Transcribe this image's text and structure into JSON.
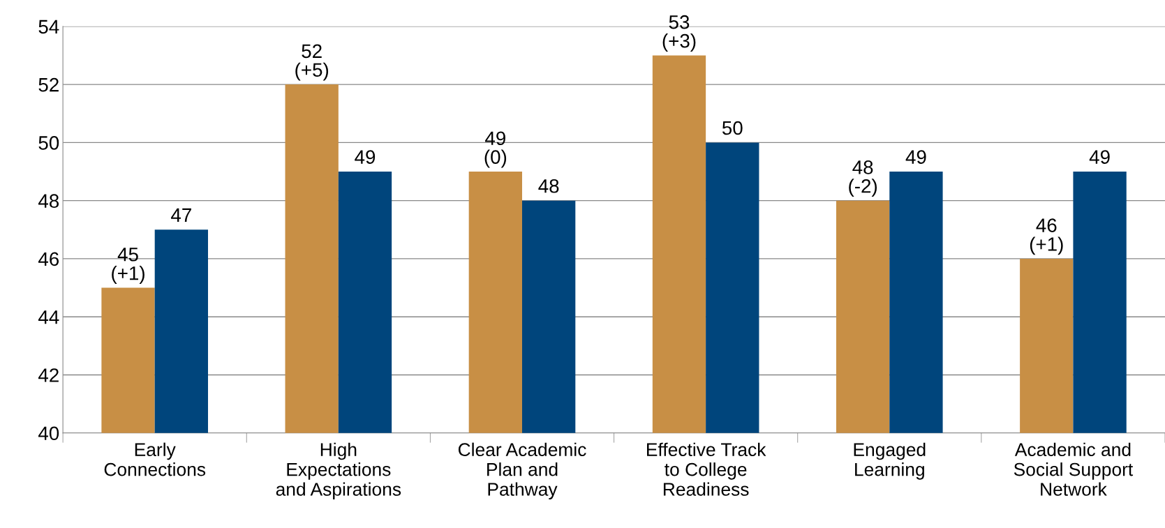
{
  "chart_data": {
    "type": "bar",
    "categories": [
      "Early\nConnections",
      "High\nExpectations\nand Aspirations",
      "Clear Academic\nPlan and\nPathway",
      "Effective Track\nto College\nReadiness",
      "Engaged\nLearning",
      "Academic and\nSocial Support\nNetwork"
    ],
    "series": [
      {
        "color": "#c88f45",
        "values": [
          45,
          52,
          49,
          53,
          48,
          46
        ],
        "value_labels": [
          "45\n(+1)",
          "52\n(+5)",
          "49\n(0)",
          "53\n(+3)",
          "48\n(-2)",
          "46\n(+1)"
        ]
      },
      {
        "color": "#00457c",
        "values": [
          47,
          49,
          48,
          50,
          49,
          49
        ],
        "value_labels": [
          "47",
          "49",
          "48",
          "50",
          "49",
          "49"
        ]
      }
    ],
    "ylim": [
      40,
      54
    ],
    "yticks": [
      40,
      42,
      44,
      46,
      48,
      50,
      52,
      54
    ],
    "grid": "y",
    "legend": false
  }
}
